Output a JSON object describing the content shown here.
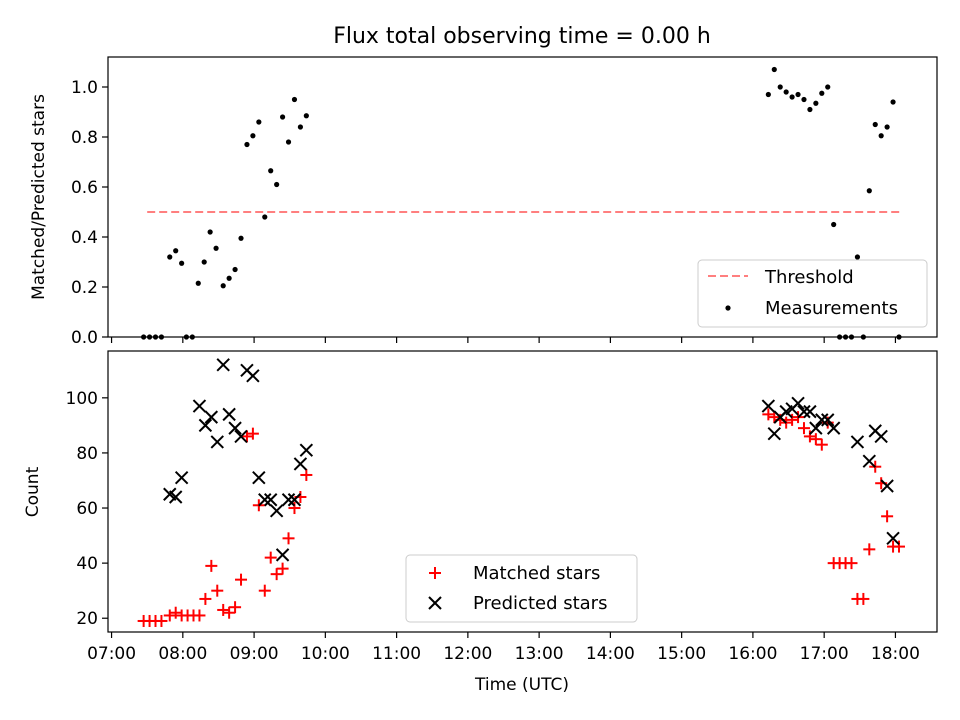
{
  "chart_data": [
    {
      "type": "scatter",
      "title": "Flux total observing time = 0.00 h",
      "xlabel": "",
      "ylabel": "Matched/Predicted stars",
      "ylim": [
        0,
        1.12
      ],
      "yticks": [
        0.0,
        0.2,
        0.4,
        0.6,
        0.8,
        1.0
      ],
      "ytick_labels": [
        "0.0",
        "0.2",
        "0.4",
        "0.6",
        "0.8",
        "1.0"
      ],
      "x_axis_shared": true,
      "legend": {
        "position": "lower-right",
        "entries": [
          "Threshold",
          "Measurements"
        ]
      },
      "threshold": {
        "name": "Threshold",
        "value": 0.5,
        "x_range": [
          "07:30",
          "18:05"
        ],
        "color": "#ff7f7f",
        "style": "dashed"
      },
      "series": [
        {
          "name": "Measurements",
          "marker": "dot",
          "color": "#000000",
          "points": [
            [
              "07:27",
              0.0
            ],
            [
              "07:32",
              0.0
            ],
            [
              "07:37",
              0.0
            ],
            [
              "07:42",
              0.0
            ],
            [
              "07:49",
              0.32
            ],
            [
              "07:54",
              0.345
            ],
            [
              "07:59",
              0.295
            ],
            [
              "08:03",
              0.0
            ],
            [
              "08:08",
              0.0
            ],
            [
              "08:13",
              0.215
            ],
            [
              "08:18",
              0.3
            ],
            [
              "08:23",
              0.42
            ],
            [
              "08:28",
              0.355
            ],
            [
              "08:34",
              0.205
            ],
            [
              "08:39",
              0.235
            ],
            [
              "08:44",
              0.27
            ],
            [
              "08:49",
              0.395
            ],
            [
              "08:54",
              0.77
            ],
            [
              "08:59",
              0.805
            ],
            [
              "09:04",
              0.86
            ],
            [
              "09:09",
              0.48
            ],
            [
              "09:14",
              0.665
            ],
            [
              "09:19",
              0.61
            ],
            [
              "09:24",
              0.88
            ],
            [
              "09:29",
              0.78
            ],
            [
              "09:34",
              0.95
            ],
            [
              "09:39",
              0.84
            ],
            [
              "09:44",
              0.885
            ],
            [
              "16:13",
              0.97
            ],
            [
              "16:18",
              1.07
            ],
            [
              "16:23",
              1.0
            ],
            [
              "16:28",
              0.98
            ],
            [
              "16:33",
              0.96
            ],
            [
              "16:38",
              0.97
            ],
            [
              "16:43",
              0.95
            ],
            [
              "16:48",
              0.91
            ],
            [
              "16:53",
              0.935
            ],
            [
              "16:58",
              0.975
            ],
            [
              "17:03",
              1.0
            ],
            [
              "17:08",
              0.45
            ],
            [
              "17:13",
              0.0
            ],
            [
              "17:18",
              0.0
            ],
            [
              "17:23",
              0.0
            ],
            [
              "17:28",
              0.32
            ],
            [
              "17:33",
              0.0
            ],
            [
              "17:38",
              0.585
            ],
            [
              "17:43",
              0.85
            ],
            [
              "17:48",
              0.805
            ],
            [
              "17:53",
              0.84
            ],
            [
              "17:58",
              0.94
            ],
            [
              "18:03",
              0.0
            ]
          ]
        }
      ]
    },
    {
      "type": "scatter",
      "title": "",
      "xlabel": "Time (UTC)",
      "ylabel": "Count",
      "ylim": [
        15,
        117
      ],
      "yticks": [
        20,
        40,
        60,
        80,
        100
      ],
      "ytick_labels": [
        "20",
        "40",
        "60",
        "80",
        "100"
      ],
      "xlim": [
        "06:57",
        "18:35"
      ],
      "xticks": [
        "07:00",
        "08:00",
        "09:00",
        "10:00",
        "11:00",
        "12:00",
        "13:00",
        "14:00",
        "15:00",
        "16:00",
        "17:00",
        "18:00"
      ],
      "legend": {
        "position": "lower-center",
        "entries": [
          "Matched stars",
          "Predicted stars"
        ]
      },
      "series": [
        {
          "name": "Matched stars",
          "marker": "plus",
          "color": "#ff0000",
          "points": [
            [
              "07:27",
              19
            ],
            [
              "07:32",
              19
            ],
            [
              "07:37",
              19
            ],
            [
              "07:42",
              19
            ],
            [
              "07:49",
              21
            ],
            [
              "07:54",
              22
            ],
            [
              "07:59",
              21
            ],
            [
              "08:04",
              21
            ],
            [
              "08:09",
              21
            ],
            [
              "08:14",
              21
            ],
            [
              "08:19",
              27
            ],
            [
              "08:24",
              39
            ],
            [
              "08:29",
              30
            ],
            [
              "08:34",
              23
            ],
            [
              "08:39",
              22
            ],
            [
              "08:44",
              24
            ],
            [
              "08:49",
              34
            ],
            [
              "08:54",
              86
            ],
            [
              "08:59",
              87
            ],
            [
              "09:04",
              61
            ],
            [
              "09:09",
              30
            ],
            [
              "09:14",
              42
            ],
            [
              "09:19",
              36
            ],
            [
              "09:24",
              38
            ],
            [
              "09:29",
              49
            ],
            [
              "09:34",
              60
            ],
            [
              "09:39",
              64
            ],
            [
              "09:44",
              72
            ],
            [
              "16:13",
              94
            ],
            [
              "16:18",
              93
            ],
            [
              "16:23",
              92
            ],
            [
              "16:28",
              91
            ],
            [
              "16:33",
              92
            ],
            [
              "16:38",
              93
            ],
            [
              "16:43",
              89
            ],
            [
              "16:48",
              86
            ],
            [
              "16:53",
              85
            ],
            [
              "16:58",
              83
            ],
            [
              "17:03",
              91
            ],
            [
              "17:08",
              40
            ],
            [
              "17:13",
              40
            ],
            [
              "17:18",
              40
            ],
            [
              "17:23",
              40
            ],
            [
              "17:28",
              27
            ],
            [
              "17:33",
              27
            ],
            [
              "17:38",
              45
            ],
            [
              "17:43",
              75
            ],
            [
              "17:48",
              69
            ],
            [
              "17:53",
              57
            ],
            [
              "17:58",
              46
            ],
            [
              "18:03",
              46
            ]
          ]
        },
        {
          "name": "Predicted stars",
          "marker": "x",
          "color": "#000000",
          "points": [
            [
              "07:49",
              65
            ],
            [
              "07:54",
              64
            ],
            [
              "07:59",
              71
            ],
            [
              "08:14",
              97
            ],
            [
              "08:19",
              90
            ],
            [
              "08:24",
              93
            ],
            [
              "08:29",
              84
            ],
            [
              "08:34",
              112
            ],
            [
              "08:39",
              94
            ],
            [
              "08:44",
              89
            ],
            [
              "08:49",
              86
            ],
            [
              "08:54",
              110
            ],
            [
              "08:59",
              108
            ],
            [
              "09:04",
              71
            ],
            [
              "09:09",
              63
            ],
            [
              "09:14",
              63
            ],
            [
              "09:19",
              59
            ],
            [
              "09:24",
              43
            ],
            [
              "09:29",
              63
            ],
            [
              "09:34",
              63
            ],
            [
              "09:39",
              76
            ],
            [
              "09:44",
              81
            ],
            [
              "16:13",
              97
            ],
            [
              "16:18",
              87
            ],
            [
              "16:23",
              93
            ],
            [
              "16:28",
              95
            ],
            [
              "16:33",
              96
            ],
            [
              "16:38",
              98
            ],
            [
              "16:43",
              95
            ],
            [
              "16:48",
              95
            ],
            [
              "16:53",
              89
            ],
            [
              "16:58",
              92
            ],
            [
              "17:03",
              92
            ],
            [
              "17:08",
              89
            ],
            [
              "17:28",
              84
            ],
            [
              "17:38",
              77
            ],
            [
              "17:43",
              88
            ],
            [
              "17:48",
              86
            ],
            [
              "17:53",
              68
            ],
            [
              "17:58",
              49
            ]
          ]
        }
      ]
    }
  ]
}
